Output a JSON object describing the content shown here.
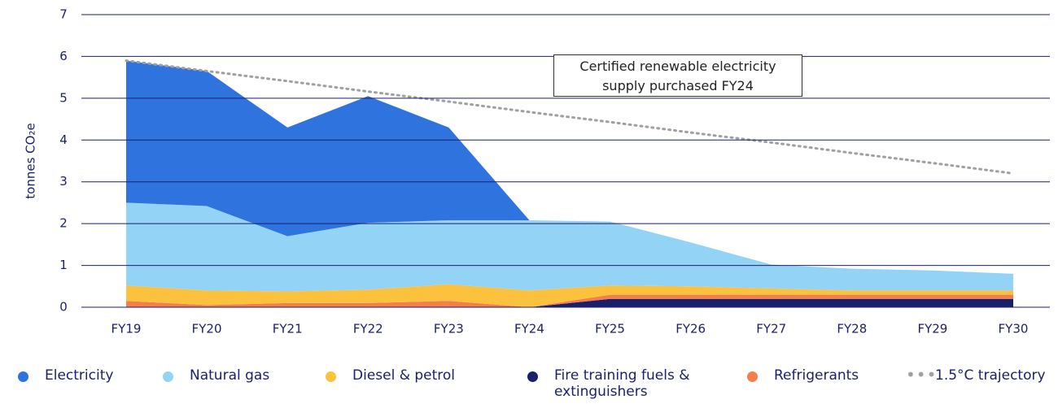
{
  "chart_data": {
    "type": "area",
    "y_label": "tonnes CO₂e",
    "categories": [
      "FY19",
      "FY20",
      "FY21",
      "FY22",
      "FY23",
      "FY24",
      "FY25",
      "FY26",
      "FY27",
      "FY28",
      "FY29",
      "FY30"
    ],
    "series": [
      {
        "name": "Electricity",
        "color": "#2f73df",
        "values": [
          3.4,
          3.23,
          2.6,
          3.03,
          2.22,
          0,
          0,
          0,
          0,
          0,
          0,
          0
        ]
      },
      {
        "name": "Natural gas",
        "color": "#93d3f5",
        "values": [
          1.98,
          2.02,
          1.32,
          1.6,
          1.53,
          1.68,
          1.53,
          1.05,
          0.57,
          0.52,
          0.48,
          0.4
        ]
      },
      {
        "name": "Diesel & petrol",
        "color": "#fcc23e",
        "values": [
          0.37,
          0.35,
          0.28,
          0.32,
          0.4,
          0.4,
          0.22,
          0.2,
          0.15,
          0.1,
          0.1,
          0.1
        ]
      },
      {
        "name": "Fire training fuels & extinguishers",
        "color": "#1a1f6b",
        "values": [
          0,
          0,
          0,
          0,
          0,
          0,
          0.2,
          0.2,
          0.2,
          0.2,
          0.2,
          0.2
        ]
      },
      {
        "name": "Refrigerants",
        "color": "#f47f4a",
        "values": [
          0.15,
          0.05,
          0.1,
          0.1,
          0.15,
          0,
          0.1,
          0.1,
          0.1,
          0.1,
          0.1,
          0.1
        ]
      },
      {
        "name": "1.5°C trajectory",
        "color": "#a0a0a0",
        "style": "dotted",
        "values": [
          5.9,
          5.65,
          5.41,
          5.16,
          4.92,
          4.67,
          4.43,
          4.18,
          3.94,
          3.69,
          3.45,
          3.2
        ]
      }
    ],
    "annotation": [
      "Certified renewable electricity",
      "supply purchased FY24"
    ],
    "ylim": [
      0,
      7
    ],
    "yticks": [
      0,
      1,
      2,
      3,
      4,
      5,
      6,
      7
    ],
    "grid": true
  }
}
